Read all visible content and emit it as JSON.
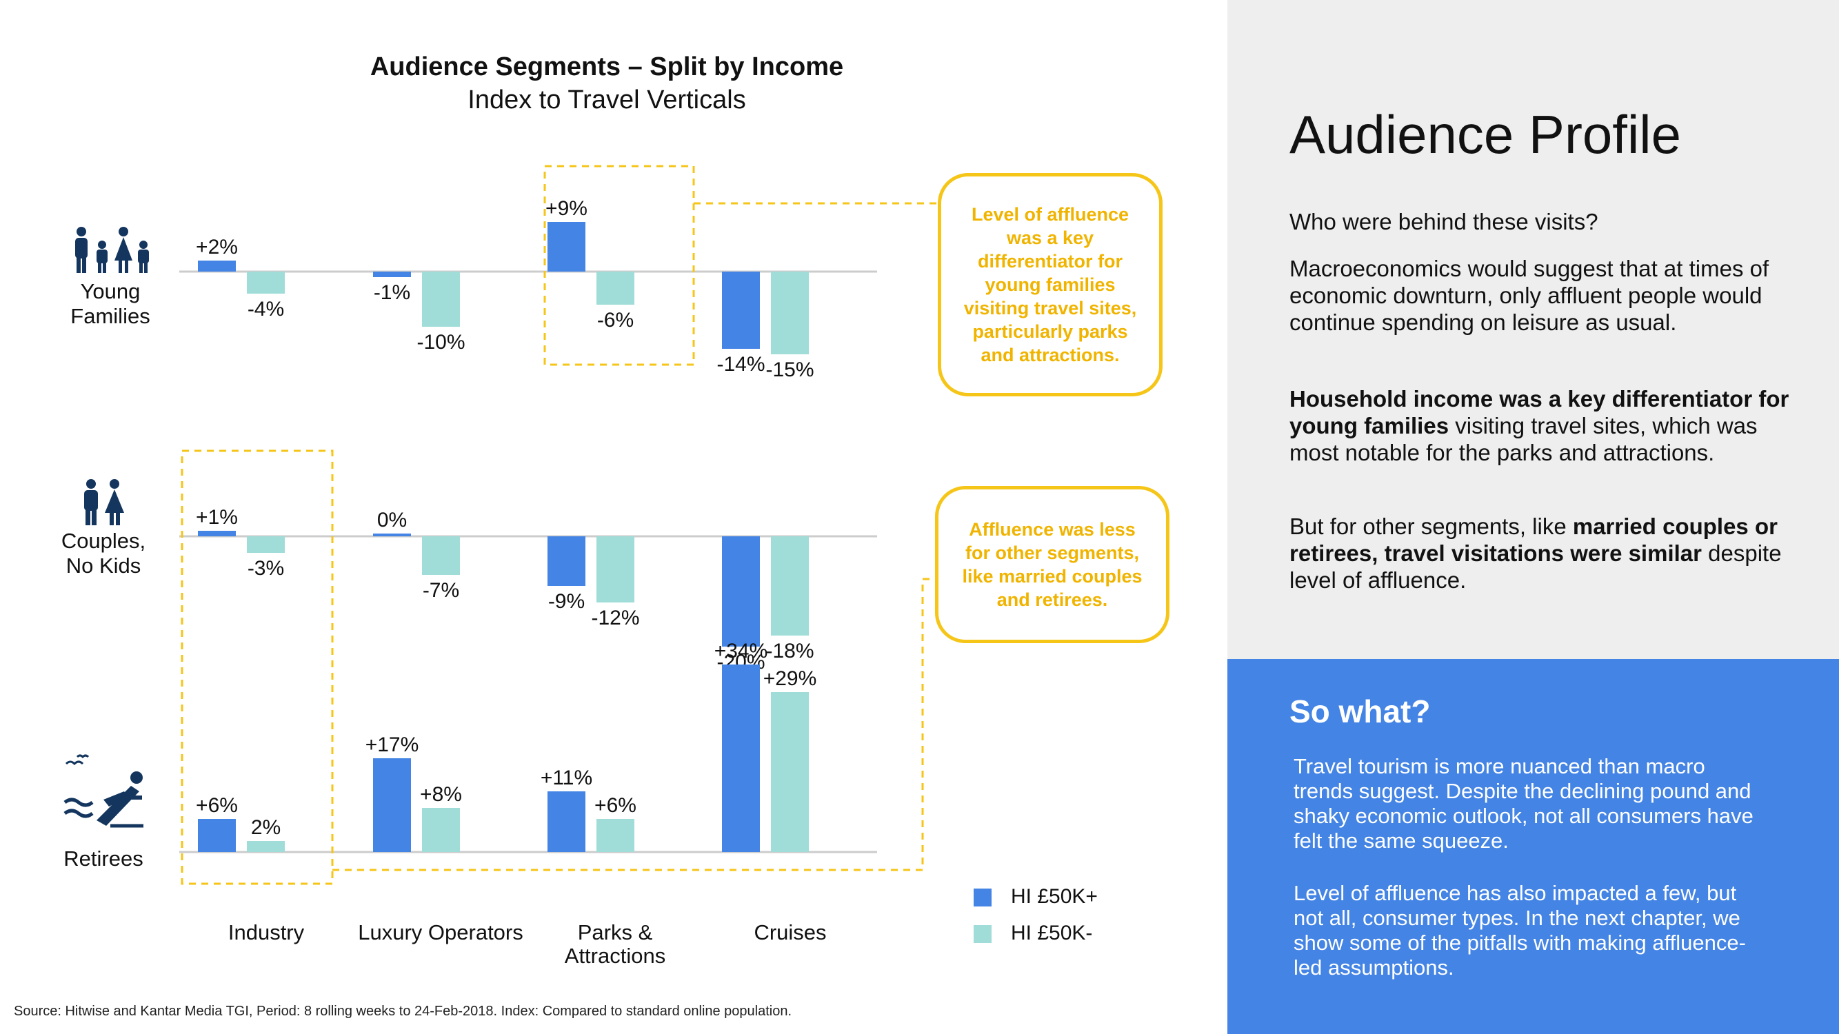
{
  "chart_title": "Audience Segments – Split by Income",
  "chart_subtitle": "Index to Travel Verticals",
  "chart_data": {
    "type": "bar",
    "title": "Audience Segments – Split by Income",
    "subtitle": "Index to Travel Verticals",
    "categories": [
      "Industry",
      "Luxury Operators",
      "Parks & Attractions",
      "Cruises"
    ],
    "panels": [
      {
        "segment": "Young Families",
        "series": [
          {
            "name": "HI £50K+",
            "values": [
              2,
              -1,
              9,
              -14
            ],
            "labels": [
              "+2%",
              "-1%",
              "+9%",
              "-14%"
            ]
          },
          {
            "name": "HI £50K-",
            "values": [
              -4,
              -10,
              -6,
              -15
            ],
            "labels": [
              "-4%",
              "-10%",
              "-6%",
              "-15%"
            ]
          }
        ]
      },
      {
        "segment": "Couples, No Kids",
        "series": [
          {
            "name": "HI £50K+",
            "values": [
              1,
              0,
              -9,
              -20
            ],
            "labels": [
              "+1%",
              "0%",
              "-9%",
              "-20%"
            ]
          },
          {
            "name": "HI £50K-",
            "values": [
              -3,
              -7,
              -12,
              -18
            ],
            "labels": [
              "-3%",
              "-7%",
              "-12%",
              "-18%"
            ]
          }
        ]
      },
      {
        "segment": "Retirees",
        "series": [
          {
            "name": "HI £50K+",
            "values": [
              6,
              17,
              11,
              34
            ],
            "labels": [
              "+6%",
              "+17%",
              "+11%",
              "+34%"
            ]
          },
          {
            "name": "HI £50K-",
            "values": [
              2,
              8,
              6,
              29
            ],
            "labels": [
              "2%",
              "+8%",
              "+6%",
              "+29%"
            ]
          }
        ]
      }
    ],
    "legend": [
      {
        "name": "HI £50K+",
        "color": "#4484e4"
      },
      {
        "name": "HI £50K-",
        "color": "#a0dcd8"
      }
    ],
    "legend_position": "bottom-right"
  },
  "segments": {
    "young_families": {
      "line1": "Young",
      "line2": "Families"
    },
    "couples": {
      "line1": "Couples,",
      "line2": "No Kids"
    },
    "retirees": {
      "line1": "Retirees"
    }
  },
  "category_labels": {
    "industry": "Industry",
    "luxury": "Luxury Operators",
    "parks_line1": "Parks &",
    "parks_line2": "Attractions",
    "cruises": "Cruises"
  },
  "callouts": {
    "young_families": "Level of affluence was a key differentiator for young families visiting travel sites, particularly parks and attractions.",
    "others": "Affluence was less for other segments, like married couples and retirees."
  },
  "source_note": "Source: Hitwise and Kantar Media TGI, Period: 8 rolling weeks to 24-Feb-2018. Index: Compared to standard online population.",
  "profile": {
    "title": "Audience Profile",
    "question": "Who were behind these visits?",
    "para1": "Macroeconomics would suggest that at times of economic downturn, only affluent people would continue spending on leisure as usual.",
    "para2_bold": "Household income was a key differentiator for young families",
    "para2_rest": " visiting travel sites, which was most notable for the parks and attractions.",
    "para3_start": "But for other segments, like ",
    "para3_bold": "married couples or retirees, travel visitations were similar",
    "para3_end": " despite level of affluence."
  },
  "so_what": {
    "title": "So what?",
    "para1": "Travel tourism is more nuanced than macro trends suggest. Despite the declining pound and shaky economic outlook, not all consumers have felt the same squeeze.",
    "para2": "Level of affluence has also impacted a few, but not all, consumer types. In the next chapter, we show some of the pitfalls with making affluence-led assumptions."
  },
  "colors": {
    "hi_plus": "#4484e4",
    "hi_minus": "#a0dcd8",
    "callout": "#f5c518",
    "icon": "#14365e",
    "panel_grey": "#eeeeee",
    "panel_blue": "#4484e4"
  }
}
